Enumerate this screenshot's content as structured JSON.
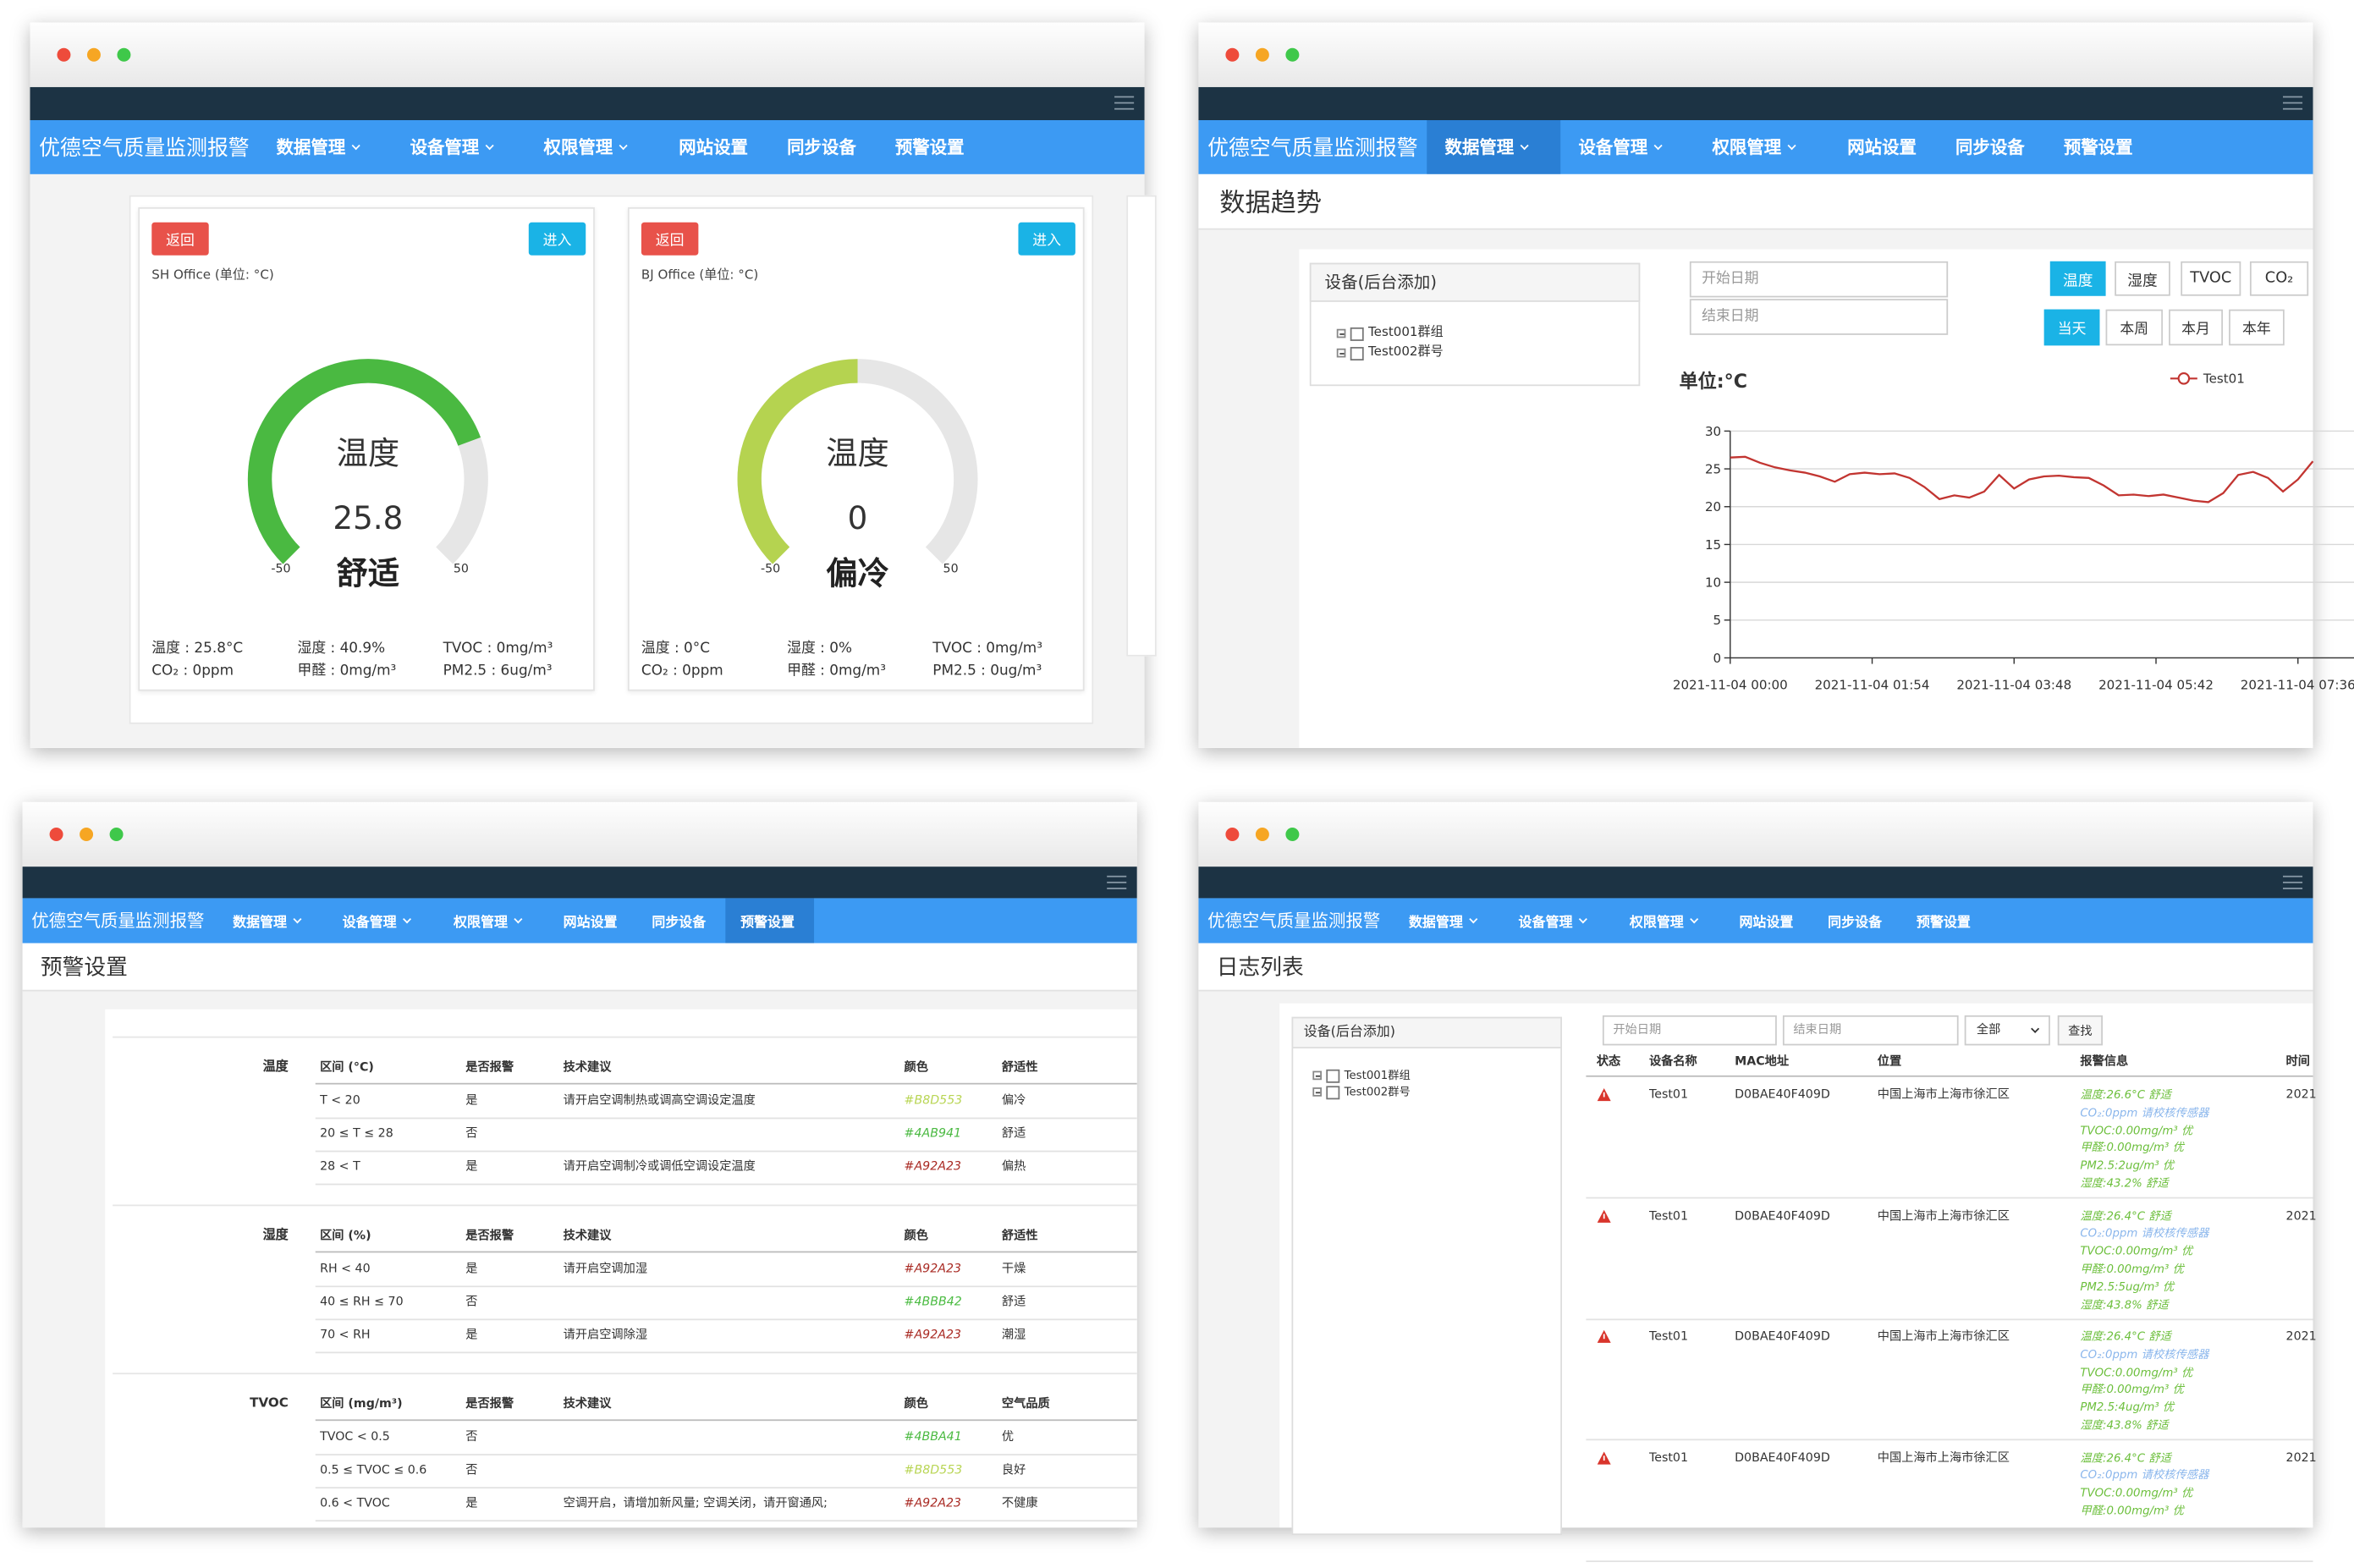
{
  "nav": {
    "brand": "优德空气质量监测报警",
    "items": [
      "数据管理",
      "设备管理",
      "权限管理",
      "网站设置",
      "同步设备",
      "预警设置"
    ]
  },
  "dashboard": {
    "cards": [
      {
        "back": "返回",
        "enter": "进入",
        "location": "SH Office (单位: °C)",
        "gauge": {
          "label": "温度",
          "value": 25.8,
          "status": "舒适",
          "min": -50,
          "max": 50,
          "color": "#4ab941"
        },
        "readings": [
          "温度 : 25.8°C",
          "湿度 : 40.9%",
          "TVOC : 0mg/m³",
          "CO₂ : 0ppm",
          "甲醛 : 0mg/m³",
          "PM2.5 : 6ug/m³"
        ]
      },
      {
        "back": "返回",
        "enter": "进入",
        "location": "BJ Office (单位: °C)",
        "gauge": {
          "label": "温度",
          "value": 0,
          "status": "偏冷",
          "min": -50,
          "max": 50,
          "color": "#b5d350"
        },
        "readings": [
          "温度 : 0°C",
          "湿度 : 0%",
          "TVOC : 0mg/m³",
          "CO₂ : 0ppm",
          "甲醛 : 0mg/m³",
          "PM2.5 : 0ug/m³"
        ]
      }
    ]
  },
  "devices": {
    "title": "设备(后台添加)",
    "items": [
      "Test001群组",
      "Test002群号"
    ]
  },
  "filters": {
    "start": "开始日期",
    "end": "结束日期"
  },
  "trend": {
    "title": "数据趋势",
    "metrics": [
      "温度",
      "湿度",
      "TVOC",
      "CO₂"
    ],
    "ranges": [
      "当天",
      "本周",
      "本月",
      "本年"
    ]
  },
  "chart_data": {
    "type": "line",
    "y_label": "单位:°C",
    "x": [
      "2021-11-04 00:00",
      "2021-11-04 00:12",
      "2021-11-04 00:24",
      "2021-11-04 00:36",
      "2021-11-04 00:48",
      "2021-11-04 01:00",
      "2021-11-04 01:12",
      "2021-11-04 01:24",
      "2021-11-04 01:36",
      "2021-11-04 01:48",
      "2021-11-04 02:00",
      "2021-11-04 02:12",
      "2021-11-04 02:24",
      "2021-11-04 02:36",
      "2021-11-04 02:48",
      "2021-11-04 03:00",
      "2021-11-04 03:12",
      "2021-11-04 03:24",
      "2021-11-04 03:36",
      "2021-11-04 03:48",
      "2021-11-04 04:00",
      "2021-11-04 04:12",
      "2021-11-04 04:24",
      "2021-11-04 04:36",
      "2021-11-04 04:48",
      "2021-11-04 05:00",
      "2021-11-04 05:12",
      "2021-11-04 05:24",
      "2021-11-04 05:36",
      "2021-11-04 05:48",
      "2021-11-04 06:00",
      "2021-11-04 06:12",
      "2021-11-04 06:24",
      "2021-11-04 06:36",
      "2021-11-04 06:48",
      "2021-11-04 07:00",
      "2021-11-04 07:12",
      "2021-11-04 07:24",
      "2021-11-04 07:36",
      "2021-11-04 07:48"
    ],
    "series": [
      {
        "name": "Test01",
        "color": "#c23531",
        "values": [
          26.5,
          26.6,
          25.8,
          25.2,
          24.8,
          24.5,
          24.0,
          23.3,
          24.3,
          24.5,
          24.3,
          24.4,
          23.8,
          22.6,
          21.0,
          21.5,
          21.2,
          22.0,
          24.2,
          22.4,
          23.6,
          24.0,
          24.1,
          23.9,
          23.8,
          22.8,
          21.5,
          21.6,
          21.4,
          21.6,
          21.2,
          20.8,
          20.6,
          21.8,
          24.2,
          24.6,
          23.8,
          22.0,
          23.6,
          26.0
        ]
      }
    ],
    "xlim": [
      "2021-11-04 00:00",
      "2021-11-04 09:30"
    ],
    "xticks": [
      "2021-11-04 00:00",
      "2021-11-04 01:54",
      "2021-11-04 03:48",
      "2021-11-04 05:42",
      "2021-11-04 07:36"
    ],
    "ylim": [
      0,
      30
    ],
    "yticks": [
      0,
      5,
      10,
      15,
      20,
      25,
      30
    ],
    "grid": true,
    "legend": "top-right"
  },
  "alerts": {
    "title": "预警设置",
    "sections": [
      {
        "name": "温度",
        "columns": [
          "区间 (°C)",
          "是否报警",
          "技术建议",
          "颜色",
          "舒适性"
        ],
        "rows": [
          {
            "range": "T < 20",
            "alarm": "是",
            "advice": "请开启空调制热或调高空调设定温度",
            "color": "#B8D553",
            "level": "偏冷"
          },
          {
            "range": "20 ≤ T ≤ 28",
            "alarm": "否",
            "color": "#4AB941",
            "level": "舒适"
          },
          {
            "range": "28 < T",
            "alarm": "是",
            "advice": "请开启空调制冷或调低空调设定温度",
            "color": "#A92A23",
            "level": "偏热"
          }
        ]
      },
      {
        "name": "湿度",
        "columns": [
          "区间 (%)",
          "是否报警",
          "技术建议",
          "颜色",
          "舒适性"
        ],
        "rows": [
          {
            "range": "RH < 40",
            "alarm": "是",
            "advice": "请开启空调加湿",
            "color": "#A92A23",
            "level": "干燥"
          },
          {
            "range": "40 ≤ RH ≤ 70",
            "alarm": "否",
            "color": "#4BBB42",
            "level": "舒适"
          },
          {
            "range": "70 < RH",
            "alarm": "是",
            "advice": "请开启空调除湿",
            "color": "#A92A23",
            "level": "潮湿"
          }
        ]
      },
      {
        "name": "TVOC",
        "columns": [
          "区间 (mg/m³)",
          "是否报警",
          "技术建议",
          "颜色",
          "空气品质"
        ],
        "rows": [
          {
            "range": "TVOC < 0.5",
            "alarm": "否",
            "color": "#4BBA41",
            "level": "优"
          },
          {
            "range": "0.5 ≤ TVOC ≤ 0.6",
            "alarm": "否",
            "color": "#B8D553",
            "level": "良好"
          },
          {
            "range": "0.6 < TVOC",
            "alarm": "是",
            "advice": "空调开启，请增加新风量; 空调关闭，请开窗通风;",
            "color": "#A92A23",
            "level": "不健康"
          }
        ]
      }
    ]
  },
  "logs": {
    "title": "日志列表",
    "select": "全部",
    "search": "查找",
    "columns": [
      "状态",
      "设备名称",
      "MAC地址",
      "位置",
      "报警信息",
      "时间"
    ],
    "rows": [
      {
        "device": "Test01",
        "mac": "D0BAE40F409D",
        "location": "中国上海市上海市徐汇区",
        "time": "2021",
        "alerts": [
          {
            "text": "温度:26.6°C 舒适",
            "color": "#6cbf3c"
          },
          {
            "text": "CO₂:0ppm 请校核传感器",
            "color": "#8ab6ec"
          },
          {
            "text": "TVOC:0.00mg/m³ 优",
            "color": "#6cbf3c"
          },
          {
            "text": "甲醛:0.00mg/m³ 优",
            "color": "#6cbf3c"
          },
          {
            "text": "PM2.5:2ug/m³ 优",
            "color": "#6cbf3c"
          },
          {
            "text": "湿度:43.2% 舒适",
            "color": "#6cbf3c"
          }
        ]
      },
      {
        "device": "Test01",
        "mac": "D0BAE40F409D",
        "location": "中国上海市上海市徐汇区",
        "time": "2021",
        "alerts": [
          {
            "text": "温度:26.4°C 舒适",
            "color": "#6cbf3c"
          },
          {
            "text": "CO₂:0ppm 请校核传感器",
            "color": "#8ab6ec"
          },
          {
            "text": "TVOC:0.00mg/m³ 优",
            "color": "#6cbf3c"
          },
          {
            "text": "甲醛:0.00mg/m³ 优",
            "color": "#6cbf3c"
          },
          {
            "text": "PM2.5:5ug/m³ 优",
            "color": "#6cbf3c"
          },
          {
            "text": "湿度:43.8% 舒适",
            "color": "#6cbf3c"
          }
        ]
      },
      {
        "device": "Test01",
        "mac": "D0BAE40F409D",
        "location": "中国上海市上海市徐汇区",
        "time": "2021",
        "alerts": [
          {
            "text": "温度:26.4°C 舒适",
            "color": "#6cbf3c"
          },
          {
            "text": "CO₂:0ppm 请校核传感器",
            "color": "#8ab6ec"
          },
          {
            "text": "TVOC:0.00mg/m³ 优",
            "color": "#6cbf3c"
          },
          {
            "text": "甲醛:0.00mg/m³ 优",
            "color": "#6cbf3c"
          },
          {
            "text": "PM2.5:4ug/m³ 优",
            "color": "#6cbf3c"
          },
          {
            "text": "湿度:43.8% 舒适",
            "color": "#6cbf3c"
          }
        ]
      },
      {
        "device": "Test01",
        "mac": "D0BAE40F409D",
        "location": "中国上海市上海市徐汇区",
        "time": "2021",
        "alerts": [
          {
            "text": "温度:26.4°C 舒适",
            "color": "#6cbf3c"
          },
          {
            "text": "CO₂:0ppm 请校核传感器",
            "color": "#8ab6ec"
          },
          {
            "text": "TVOC:0.00mg/m³ 优",
            "color": "#6cbf3c"
          },
          {
            "text": "甲醛:0.00mg/m³ 优",
            "color": "#6cbf3c"
          }
        ]
      }
    ]
  }
}
